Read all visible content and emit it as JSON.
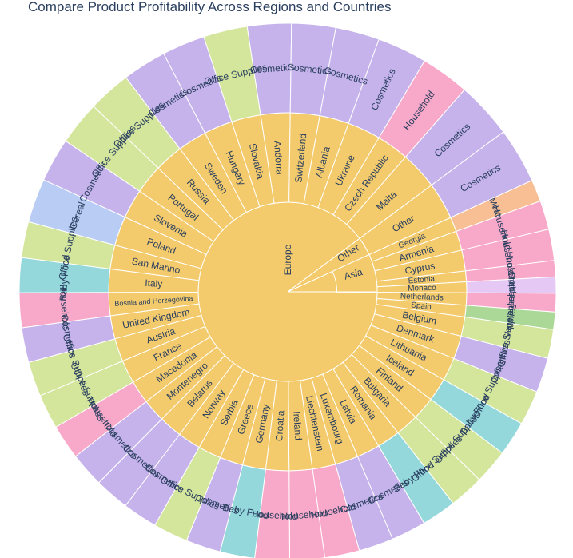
{
  "chart_data": {
    "type": "sunburst",
    "title": "Compare Product Profitability Across Regions and Countries",
    "levels": [
      "region",
      "country",
      "product"
    ],
    "colors": {
      "region": "#F4CB6C",
      "Cosmetics": "#C6B3EC",
      "Office Supplies": "#D4E59C",
      "Household": "#F8A8C8",
      "Baby Food": "#94D8DC",
      "Cereal": "#B8CCF4",
      "Meat": "#F8BE94",
      "Clothes": "#E6C8F4",
      "Vegetables": "#ABD897"
    },
    "regions": [
      {
        "name": "Europe",
        "countries": [
          {
            "name": "Malta",
            "products": [
              {
                "name": "Cosmetics",
                "value": 4.9
              }
            ]
          },
          {
            "name": "Czech Republic",
            "products": [
              {
                "name": "Household",
                "value": 4.2
              }
            ]
          },
          {
            "name": "Ukraine",
            "products": [
              {
                "name": "Cosmetics",
                "value": 4.3
              }
            ]
          },
          {
            "name": "Albania",
            "products": [
              {
                "name": "Cosmetics",
                "value": 3.8
              }
            ]
          },
          {
            "name": "Switzerland",
            "products": [
              {
                "name": "Cosmetics",
                "value": 3.8
              }
            ]
          },
          {
            "name": "Andorra",
            "products": [
              {
                "name": "Cosmetics",
                "value": 3.8
              }
            ]
          },
          {
            "name": "Slovakia",
            "products": [
              {
                "name": "Office Supplies",
                "value": 3.8
              }
            ]
          },
          {
            "name": "Hungary",
            "products": [
              {
                "name": "Cosmetics",
                "value": 3.7
              }
            ]
          },
          {
            "name": "Sweden",
            "products": [
              {
                "name": "Cosmetics",
                "value": 3.8
              }
            ]
          },
          {
            "name": "Russia",
            "products": [
              {
                "name": "Office Supplies",
                "value": 3.7
              }
            ]
          },
          {
            "name": "Portugal",
            "products": [
              {
                "name": "Office Supplies",
                "value": 3.8
              }
            ]
          },
          {
            "name": "Slovenia",
            "products": [
              {
                "name": "Cosmetics",
                "value": 3.8
              }
            ]
          },
          {
            "name": "Poland",
            "products": [
              {
                "name": "Cereal",
                "value": 3.8
              }
            ]
          },
          {
            "name": "San Marino",
            "products": [
              {
                "name": "Office Supplies",
                "value": 3.1
              }
            ]
          },
          {
            "name": "Italy",
            "products": [
              {
                "name": "Baby Food",
                "value": 3.0
              }
            ]
          },
          {
            "name": "Bosnia and Herzegovina",
            "products": [
              {
                "name": "Household",
                "value": 3.0
              }
            ]
          },
          {
            "name": "United Kingdom",
            "products": [
              {
                "name": "Cosmetics",
                "value": 3.0
              }
            ]
          },
          {
            "name": "Austria",
            "products": [
              {
                "name": "Office Supplies",
                "value": 3.0
              }
            ]
          },
          {
            "name": "France",
            "products": [
              {
                "name": "Office Supplies",
                "value": 3.0
              }
            ]
          },
          {
            "name": "Macedonia",
            "products": [
              {
                "name": "Household",
                "value": 3.0
              }
            ]
          },
          {
            "name": "Montenegro",
            "products": [
              {
                "name": "Cosmetics",
                "value": 3.0
              }
            ]
          },
          {
            "name": "Belarus",
            "products": [
              {
                "name": "Cosmetics",
                "value": 3.0
              }
            ]
          },
          {
            "name": "Norway",
            "products": [
              {
                "name": "Cosmetics",
                "value": 3.0
              }
            ]
          },
          {
            "name": "Serbia",
            "products": [
              {
                "name": "Office Supplies",
                "value": 3.0
              }
            ]
          },
          {
            "name": "Greece",
            "products": [
              {
                "name": "Cosmetics",
                "value": 3.0
              }
            ]
          },
          {
            "name": "Germany",
            "products": [
              {
                "name": "Baby Food",
                "value": 3.0
              }
            ]
          },
          {
            "name": "Croatia",
            "products": [
              {
                "name": "Household",
                "value": 3.0
              }
            ]
          },
          {
            "name": "Ireland",
            "products": [
              {
                "name": "Household",
                "value": 3.0
              }
            ]
          },
          {
            "name": "Liechtenstein",
            "products": [
              {
                "name": "Household",
                "value": 3.0
              }
            ]
          },
          {
            "name": "Luxembourg",
            "products": [
              {
                "name": "Cosmetics",
                "value": 3.0
              }
            ]
          },
          {
            "name": "Latvia",
            "products": [
              {
                "name": "Cosmetics",
                "value": 3.0
              }
            ]
          },
          {
            "name": "Romania",
            "products": [
              {
                "name": "Baby Food",
                "value": 3.0
              }
            ]
          },
          {
            "name": "Bulgaria",
            "products": [
              {
                "name": "Office Supplies",
                "value": 3.0
              }
            ]
          },
          {
            "name": "Finland",
            "products": [
              {
                "name": "Office Supplies",
                "value": 3.0
              }
            ]
          },
          {
            "name": "Iceland",
            "products": [
              {
                "name": "Baby Food",
                "value": 3.0
              }
            ]
          },
          {
            "name": "Lithuania",
            "products": [
              {
                "name": "Office Supplies",
                "value": 3.0
              }
            ]
          },
          {
            "name": "Denmark",
            "products": [
              {
                "name": "Cosmetics",
                "value": 3.0
              }
            ]
          },
          {
            "name": "Belgium",
            "products": [
              {
                "name": "Office Supplies",
                "value": 2.5
              }
            ]
          },
          {
            "name": "Spain",
            "products": [
              {
                "name": "Vegetables",
                "value": 1.5
              }
            ]
          },
          {
            "name": "Netherlands",
            "products": [
              {
                "name": "Household",
                "value": 1.6
              }
            ]
          },
          {
            "name": "Monaco",
            "products": [
              {
                "name": "Clothes",
                "value": 1.4
              }
            ]
          },
          {
            "name": "Estonia",
            "products": [
              {
                "name": "Household",
                "value": 1.4
              }
            ]
          },
          {
            "name": "Cyprus",
            "products": [
              {
                "name": "Household",
                "value": 2.7
              }
            ]
          },
          {
            "name": "Armenia",
            "products": [
              {
                "name": "Household",
                "value": 2.5
              }
            ]
          },
          {
            "name": "Georgia",
            "products": [
              {
                "name": "Meat",
                "value": 1.9
              }
            ]
          }
        ]
      },
      {
        "name": "Asia",
        "countries": []
      },
      {
        "name": "Other",
        "countries": [
          {
            "name": "Other",
            "products": [
              {
                "name": "Cosmetics",
                "value": 4.8
              }
            ]
          }
        ]
      }
    ]
  }
}
